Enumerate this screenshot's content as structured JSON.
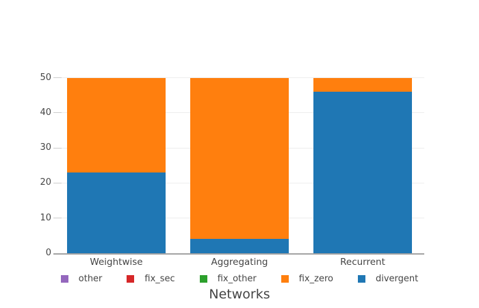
{
  "chart_data": {
    "type": "bar",
    "stacked": true,
    "title": "",
    "xlabel": "Networks",
    "ylabel": "",
    "categories": [
      "Weightwise",
      "Aggregating",
      "Recurrent"
    ],
    "series": [
      {
        "name": "other",
        "color": "#9467bd",
        "values": [
          0,
          0,
          0
        ]
      },
      {
        "name": "fix_sec",
        "color": "#d62728",
        "values": [
          0,
          0,
          0
        ]
      },
      {
        "name": "fix_other",
        "color": "#2ca02c",
        "values": [
          0,
          0,
          0
        ]
      },
      {
        "name": "fix_zero",
        "color": "#ff7f0e",
        "values": [
          27,
          46,
          4
        ]
      },
      {
        "name": "divergent",
        "color": "#1f77b4",
        "values": [
          23,
          4,
          46
        ]
      }
    ],
    "stack_order_bottom_to_top": [
      "divergent",
      "fix_zero",
      "fix_other",
      "fix_sec",
      "other"
    ],
    "ylim": [
      0,
      50
    ],
    "yticks": [
      "0",
      "10",
      "20",
      "30",
      "40",
      "50"
    ],
    "grid": true,
    "legend_position": "bottom"
  },
  "styles": {
    "background_color": "#ffffff",
    "text_color": "#444444",
    "grid_color": "#ededed",
    "axis_line_color": "#a3a3a3",
    "tick_mark_color": "#cccccc"
  }
}
